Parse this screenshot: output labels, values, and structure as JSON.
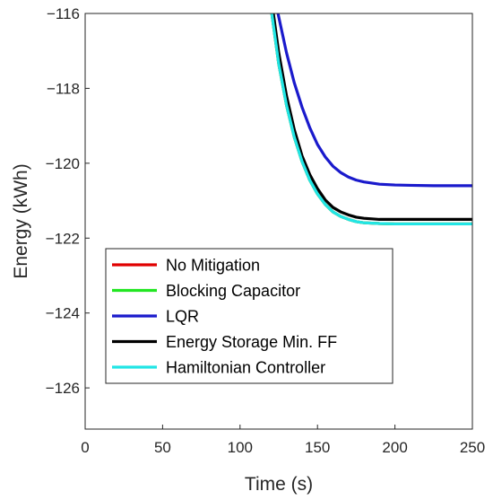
{
  "chart_data": {
    "type": "line",
    "title": "",
    "xlabel": "Time (s)",
    "ylabel": "Energy (kWh)",
    "xlim": [
      0,
      250
    ],
    "ylim": [
      -127.1,
      -116
    ],
    "xticks": [
      0,
      50,
      100,
      150,
      200,
      250
    ],
    "yticks": [
      -116,
      -118,
      -120,
      -122,
      -124,
      -126
    ],
    "grid": false,
    "legend_position": "bottom-left",
    "series": [
      {
        "name": "No Mitigation",
        "color": "#e00000",
        "x": [
          120.5,
          125,
          130,
          135,
          140,
          145,
          150,
          155,
          160,
          165,
          170,
          175,
          180,
          190,
          200,
          210,
          225,
          250
        ],
        "y": [
          -116,
          -117.35,
          -118.45,
          -119.3,
          -119.95,
          -120.45,
          -120.82,
          -121.1,
          -121.3,
          -121.42,
          -121.5,
          -121.56,
          -121.59,
          -121.61,
          -121.62,
          -121.62,
          -121.62,
          -121.62
        ]
      },
      {
        "name": "Blocking Capacitor",
        "color": "#22e622",
        "x": [
          120.5,
          125,
          130,
          135,
          140,
          145,
          150,
          155,
          160,
          165,
          170,
          175,
          180,
          190,
          200,
          210,
          225,
          250
        ],
        "y": [
          -116,
          -117.35,
          -118.45,
          -119.3,
          -119.95,
          -120.45,
          -120.82,
          -121.1,
          -121.3,
          -121.42,
          -121.5,
          -121.56,
          -121.59,
          -121.61,
          -121.62,
          -121.62,
          -121.62,
          -121.62
        ]
      },
      {
        "name": "LQR",
        "color": "#1a1acc",
        "x": [
          124.5,
          130,
          135,
          140,
          145,
          150,
          155,
          160,
          165,
          170,
          175,
          180,
          190,
          200,
          210,
          225,
          250
        ],
        "y": [
          -116,
          -117.05,
          -117.85,
          -118.5,
          -119.05,
          -119.5,
          -119.83,
          -120.08,
          -120.25,
          -120.37,
          -120.45,
          -120.5,
          -120.56,
          -120.58,
          -120.59,
          -120.6,
          -120.6
        ]
      },
      {
        "name": "Energy Storage Min. FF",
        "color": "#000000",
        "x": [
          121.5,
          125,
          130,
          135,
          140,
          145,
          150,
          155,
          160,
          165,
          170,
          175,
          180,
          190,
          200,
          210,
          225,
          250
        ],
        "y": [
          -116,
          -117.05,
          -118.2,
          -119.1,
          -119.8,
          -120.3,
          -120.68,
          -120.98,
          -121.18,
          -121.3,
          -121.38,
          -121.44,
          -121.47,
          -121.5,
          -121.5,
          -121.5,
          -121.5,
          -121.5
        ]
      },
      {
        "name": "Hamiltonian Controller",
        "color": "#22e5e5",
        "x": [
          120.5,
          125,
          130,
          135,
          140,
          145,
          150,
          155,
          160,
          165,
          170,
          175,
          180,
          190,
          200,
          210,
          225,
          250
        ],
        "y": [
          -116,
          -117.35,
          -118.45,
          -119.3,
          -119.95,
          -120.45,
          -120.82,
          -121.1,
          -121.3,
          -121.42,
          -121.5,
          -121.56,
          -121.59,
          -121.61,
          -121.62,
          -121.62,
          -121.62,
          -121.62
        ]
      }
    ]
  }
}
